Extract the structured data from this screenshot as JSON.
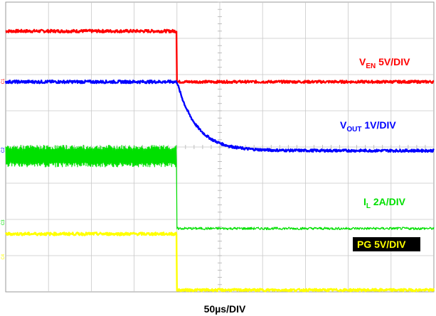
{
  "chart_data": {
    "type": "line",
    "x_scale": "50µs/DIV",
    "x_divisions": 10,
    "y_divisions": 8,
    "grid": true,
    "xlabel": "50µs/DIV",
    "channels": [
      {
        "id": "C1",
        "name_main": "V",
        "name_sub": "EN",
        "scale": "5V/DIV",
        "color": "#ff0000",
        "pre_level_div": 7.2,
        "post_level_div": 5.8,
        "transition": "step",
        "event_div": 4.0
      },
      {
        "id": "C2",
        "name_main": "V",
        "name_sub": "OUT",
        "scale": "1V/DIV",
        "color": "#0000ff",
        "pre_level_div": 5.8,
        "post_level_div": 3.9,
        "transition": "exponential",
        "tau_div": 0.45,
        "event_div": 4.0
      },
      {
        "id": "C3",
        "name_main": "I",
        "name_sub": "L",
        "scale": "2A/DIV",
        "color": "#00e000",
        "pre_level_div": 3.75,
        "ripple_div": 0.6,
        "post_level_div": 1.75,
        "transition": "step",
        "event_div": 4.0
      },
      {
        "id": "C4",
        "name_main": "PG",
        "name_sub": "",
        "scale": "5V/DIV",
        "color": "#ffff00",
        "pre_level_div": 1.6,
        "post_level_div": 0.05,
        "transition": "step",
        "event_div": 4.0
      }
    ]
  }
}
